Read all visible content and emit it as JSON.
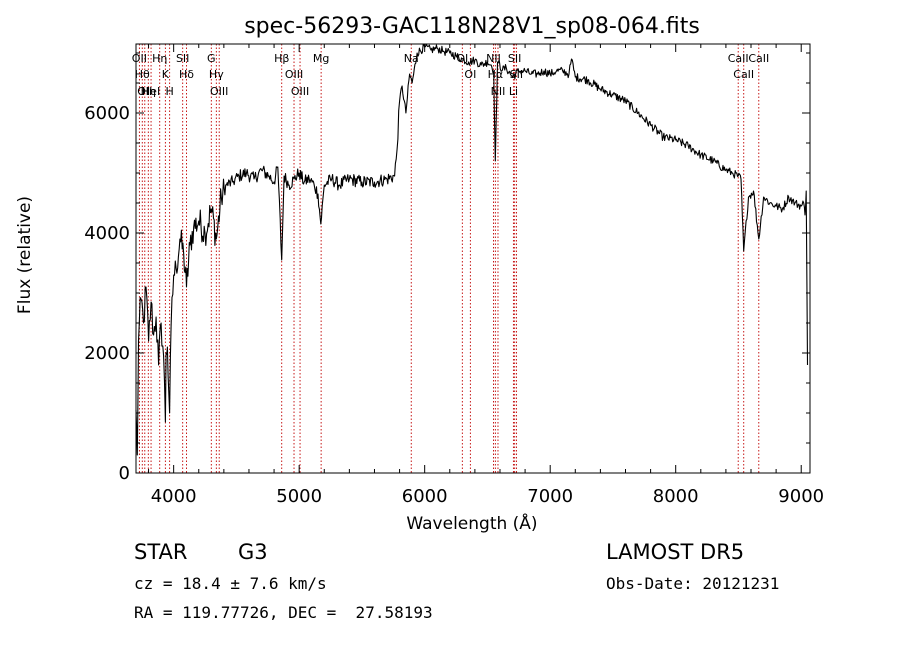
{
  "chart_data": {
    "type": "line",
    "title": "spec-56293-GAC118N28V1_sp08-064.fits",
    "xlabel": "Wavelength (Å)",
    "ylabel": "Flux (relative)",
    "xlim": [
      3700,
      9070
    ],
    "ylim": [
      0,
      7150
    ],
    "x_ticks": [
      4000,
      5000,
      6000,
      7000,
      8000,
      9000
    ],
    "y_ticks": [
      0,
      2000,
      4000,
      6000
    ],
    "line_color": "#000000",
    "marker_color": "#c00000",
    "series": [
      {
        "x": [
          3700,
          3710,
          3720,
          3740,
          3760,
          3780,
          3800,
          3820,
          3840,
          3860,
          3880,
          3900,
          3920,
          3934,
          3940,
          3950,
          3968,
          3980,
          4000,
          4020,
          4050,
          4080,
          4102,
          4130,
          4160,
          4200,
          4250,
          4300,
          4340,
          4380,
          4420,
          4470,
          4520,
          4580,
          4640,
          4700,
          4760,
          4800,
          4830,
          4861,
          4880,
          4920,
          4960,
          5000,
          5040,
          5080,
          5120,
          5150,
          5172,
          5200,
          5260,
          5320,
          5400,
          5500,
          5600,
          5700,
          5760,
          5780,
          5800,
          5820,
          5850,
          5880,
          5900,
          5940,
          6000,
          6050,
          6100,
          6150,
          6200,
          6250,
          6300,
          6350,
          6400,
          6450,
          6500,
          6530,
          6550,
          6563,
          6580,
          6620,
          6650,
          6700,
          6750,
          6800,
          6850,
          6900,
          6950,
          7000,
          7050,
          7100,
          7150,
          7170,
          7200,
          7300,
          7400,
          7500,
          7600,
          7700,
          7800,
          7900,
          8000,
          8100,
          8200,
          8300,
          8400,
          8450,
          8498,
          8520,
          8542,
          8580,
          8620,
          8662,
          8700,
          8750,
          8800,
          8850,
          8900,
          8950,
          9000,
          9020,
          9030,
          9040,
          9050
        ],
        "y": [
          1050,
          300,
          2200,
          2900,
          2500,
          3100,
          2200,
          2850,
          2300,
          2600,
          1800,
          2500,
          1950,
          850,
          2000,
          2100,
          1000,
          2450,
          3300,
          3400,
          3900,
          3650,
          3100,
          3800,
          4100,
          4200,
          4000,
          4400,
          3900,
          4600,
          4800,
          4850,
          4950,
          5000,
          4900,
          5050,
          4950,
          4850,
          5100,
          3550,
          4950,
          4800,
          4900,
          5000,
          4850,
          4900,
          4800,
          4650,
          4150,
          4800,
          4900,
          4800,
          4900,
          4850,
          4850,
          4900,
          4950,
          5400,
          6200,
          6450,
          6000,
          6650,
          6500,
          7000,
          7100,
          7050,
          7080,
          7030,
          7000,
          6950,
          6900,
          6850,
          6880,
          6800,
          6850,
          6800,
          6700,
          5200,
          6850,
          6720,
          6750,
          6600,
          6700,
          6700,
          6650,
          6650,
          6700,
          6650,
          6700,
          6700,
          6650,
          6900,
          6600,
          6550,
          6400,
          6300,
          6200,
          6000,
          5800,
          5600,
          5550,
          5450,
          5300,
          5200,
          5050,
          5000,
          4950,
          4900,
          3700,
          4600,
          4700,
          3900,
          4600,
          4500,
          4450,
          4400,
          4600,
          4500,
          4450,
          4500,
          4300,
          4700,
          1800
        ]
      }
    ],
    "line_markers": [
      {
        "x": 3727,
        "label": "OII"
      },
      {
        "x": 3750,
        "label": "Hθ"
      },
      {
        "x": 3770,
        "label": "OII"
      },
      {
        "x": 3798,
        "label": "Hη"
      },
      {
        "x": 3820,
        "label": "HeI"
      },
      {
        "x": 3889,
        "label": "Hη"
      },
      {
        "x": 3934,
        "label": "K"
      },
      {
        "x": 3968,
        "label": "H"
      },
      {
        "x": 4072,
        "label": "SII"
      },
      {
        "x": 4102,
        "label": "Hδ"
      },
      {
        "x": 4300,
        "label": "G"
      },
      {
        "x": 4340,
        "label": "Hγ"
      },
      {
        "x": 4363,
        "label": "OIII"
      },
      {
        "x": 4861,
        "label": "Hβ"
      },
      {
        "x": 4959,
        "label": "OIII"
      },
      {
        "x": 5007,
        "label": "OIII"
      },
      {
        "x": 5175,
        "label": "Mg"
      },
      {
        "x": 5893,
        "label": "Na"
      },
      {
        "x": 6300,
        "label": "OI"
      },
      {
        "x": 6364,
        "label": "OI"
      },
      {
        "x": 6548,
        "label": "NII"
      },
      {
        "x": 6563,
        "label": "Hα"
      },
      {
        "x": 6584,
        "label": "NII"
      },
      {
        "x": 6707,
        "label": "Li"
      },
      {
        "x": 6717,
        "label": "SII"
      },
      {
        "x": 6731,
        "label": "SII"
      },
      {
        "x": 8498,
        "label": "CaII"
      },
      {
        "x": 8542,
        "label": "CaII"
      },
      {
        "x": 8662,
        "label": "CaII"
      }
    ]
  },
  "info": {
    "object_class": "STAR",
    "subclass": "G3",
    "survey": "LAMOST DR5",
    "redshift_line": "cz = 18.4 ± 7.6 km/s",
    "obs_date_line": "Obs-Date: 20121231",
    "coords_line": "RA = 119.77726, DEC =  27.58193"
  }
}
